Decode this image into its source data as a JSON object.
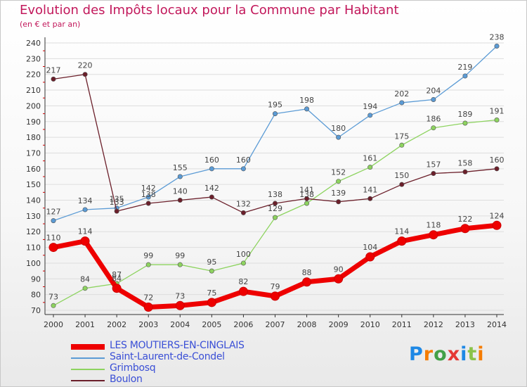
{
  "title": "Evolution des Impôts locaux pour la Commune par Habitant",
  "subtitle": "(en € et par an)",
  "brand": "Proxiti",
  "colors": {
    "title": "#c2185b",
    "grid": "#dddddd",
    "axis": "#333333",
    "legend_text": "#3a4fd6"
  },
  "chart_data": {
    "type": "line",
    "title": "Evolution des Impôts locaux pour la Commune par Habitant",
    "subtitle": "(en € et par an)",
    "xlabel": "",
    "ylabel": "",
    "categories": [
      "2000",
      "2001",
      "2002",
      "2003",
      "2004",
      "2005",
      "2006",
      "2007",
      "2008",
      "2009",
      "2010",
      "2011",
      "2012",
      "2013",
      "2014"
    ],
    "ylim": [
      70,
      240
    ],
    "yticks": [
      70,
      80,
      90,
      100,
      110,
      120,
      130,
      140,
      150,
      160,
      170,
      180,
      190,
      200,
      210,
      220,
      230,
      240
    ],
    "grid": true,
    "legend_position": "bottom-left",
    "series": [
      {
        "name": "LES MOUTIERS-EN-CINGLAIS",
        "color": "#ee0000",
        "values": [
          110,
          114,
          84,
          72,
          73,
          75,
          82,
          79,
          88,
          90,
          104,
          114,
          118,
          122,
          124
        ]
      },
      {
        "name": "Saint-Laurent-de-Condel",
        "color": "#5b9bd5",
        "values": [
          127,
          134,
          135,
          142,
          155,
          160,
          160,
          195,
          198,
          180,
          194,
          202,
          204,
          219,
          238
        ]
      },
      {
        "name": "Grimbosq",
        "color": "#8dd35f",
        "values": [
          73,
          84,
          87,
          99,
          99,
          95,
          100,
          129,
          138,
          152,
          161,
          175,
          186,
          189,
          191
        ]
      },
      {
        "name": "Boulon",
        "color": "#6b1f2a",
        "values": [
          217,
          220,
          133,
          138,
          140,
          142,
          132,
          138,
          141,
          139,
          141,
          150,
          157,
          158,
          160
        ]
      }
    ]
  }
}
